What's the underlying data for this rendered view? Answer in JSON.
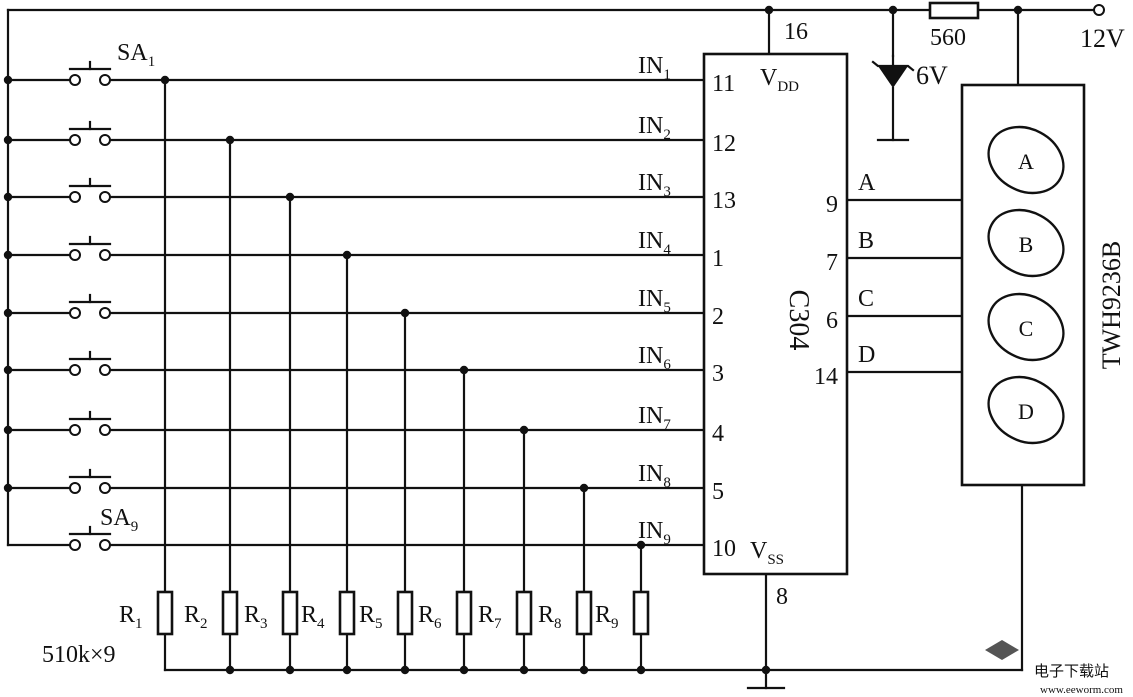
{
  "labels": {
    "supply": "12V",
    "resistor_top": "560",
    "zener": "6V",
    "chip_name": "C304",
    "vdd": "V",
    "vdd_sub": "DD",
    "vss": "V",
    "vss_sub": "SS",
    "pin_vdd": "16",
    "pin_vss": "8",
    "pin_vss_left": "10",
    "display_name": "TWH9236B",
    "resistor_value": "510k×9",
    "sa_first": "SA",
    "sa_first_sub": "1",
    "sa_last": "SA",
    "sa_last_sub": "9"
  },
  "inputs": [
    {
      "name": "IN",
      "sub": "1",
      "pin": "11"
    },
    {
      "name": "IN",
      "sub": "2",
      "pin": "12"
    },
    {
      "name": "IN",
      "sub": "3",
      "pin": "13"
    },
    {
      "name": "IN",
      "sub": "4",
      "pin": "1"
    },
    {
      "name": "IN",
      "sub": "5",
      "pin": "2"
    },
    {
      "name": "IN",
      "sub": "6",
      "pin": "3"
    },
    {
      "name": "IN",
      "sub": "7",
      "pin": "4"
    },
    {
      "name": "IN",
      "sub": "8",
      "pin": "5"
    },
    {
      "name": "IN",
      "sub": "9",
      "pin": ""
    }
  ],
  "outputs": [
    {
      "name": "A",
      "pin": "9",
      "segment": "A"
    },
    {
      "name": "B",
      "pin": "7",
      "segment": "B"
    },
    {
      "name": "C",
      "pin": "6",
      "segment": "C"
    },
    {
      "name": "D",
      "pin": "14",
      "segment": "D"
    }
  ],
  "resistors": [
    {
      "name": "R",
      "sub": "1"
    },
    {
      "name": "R",
      "sub": "2"
    },
    {
      "name": "R",
      "sub": "3"
    },
    {
      "name": "R",
      "sub": "4"
    },
    {
      "name": "R",
      "sub": "5"
    },
    {
      "name": "R",
      "sub": "6"
    },
    {
      "name": "R",
      "sub": "7"
    },
    {
      "name": "R",
      "sub": "8"
    },
    {
      "name": "R",
      "sub": "9"
    }
  ],
  "watermark": {
    "text": "电子下载站",
    "url": "www.eeworm.com"
  }
}
